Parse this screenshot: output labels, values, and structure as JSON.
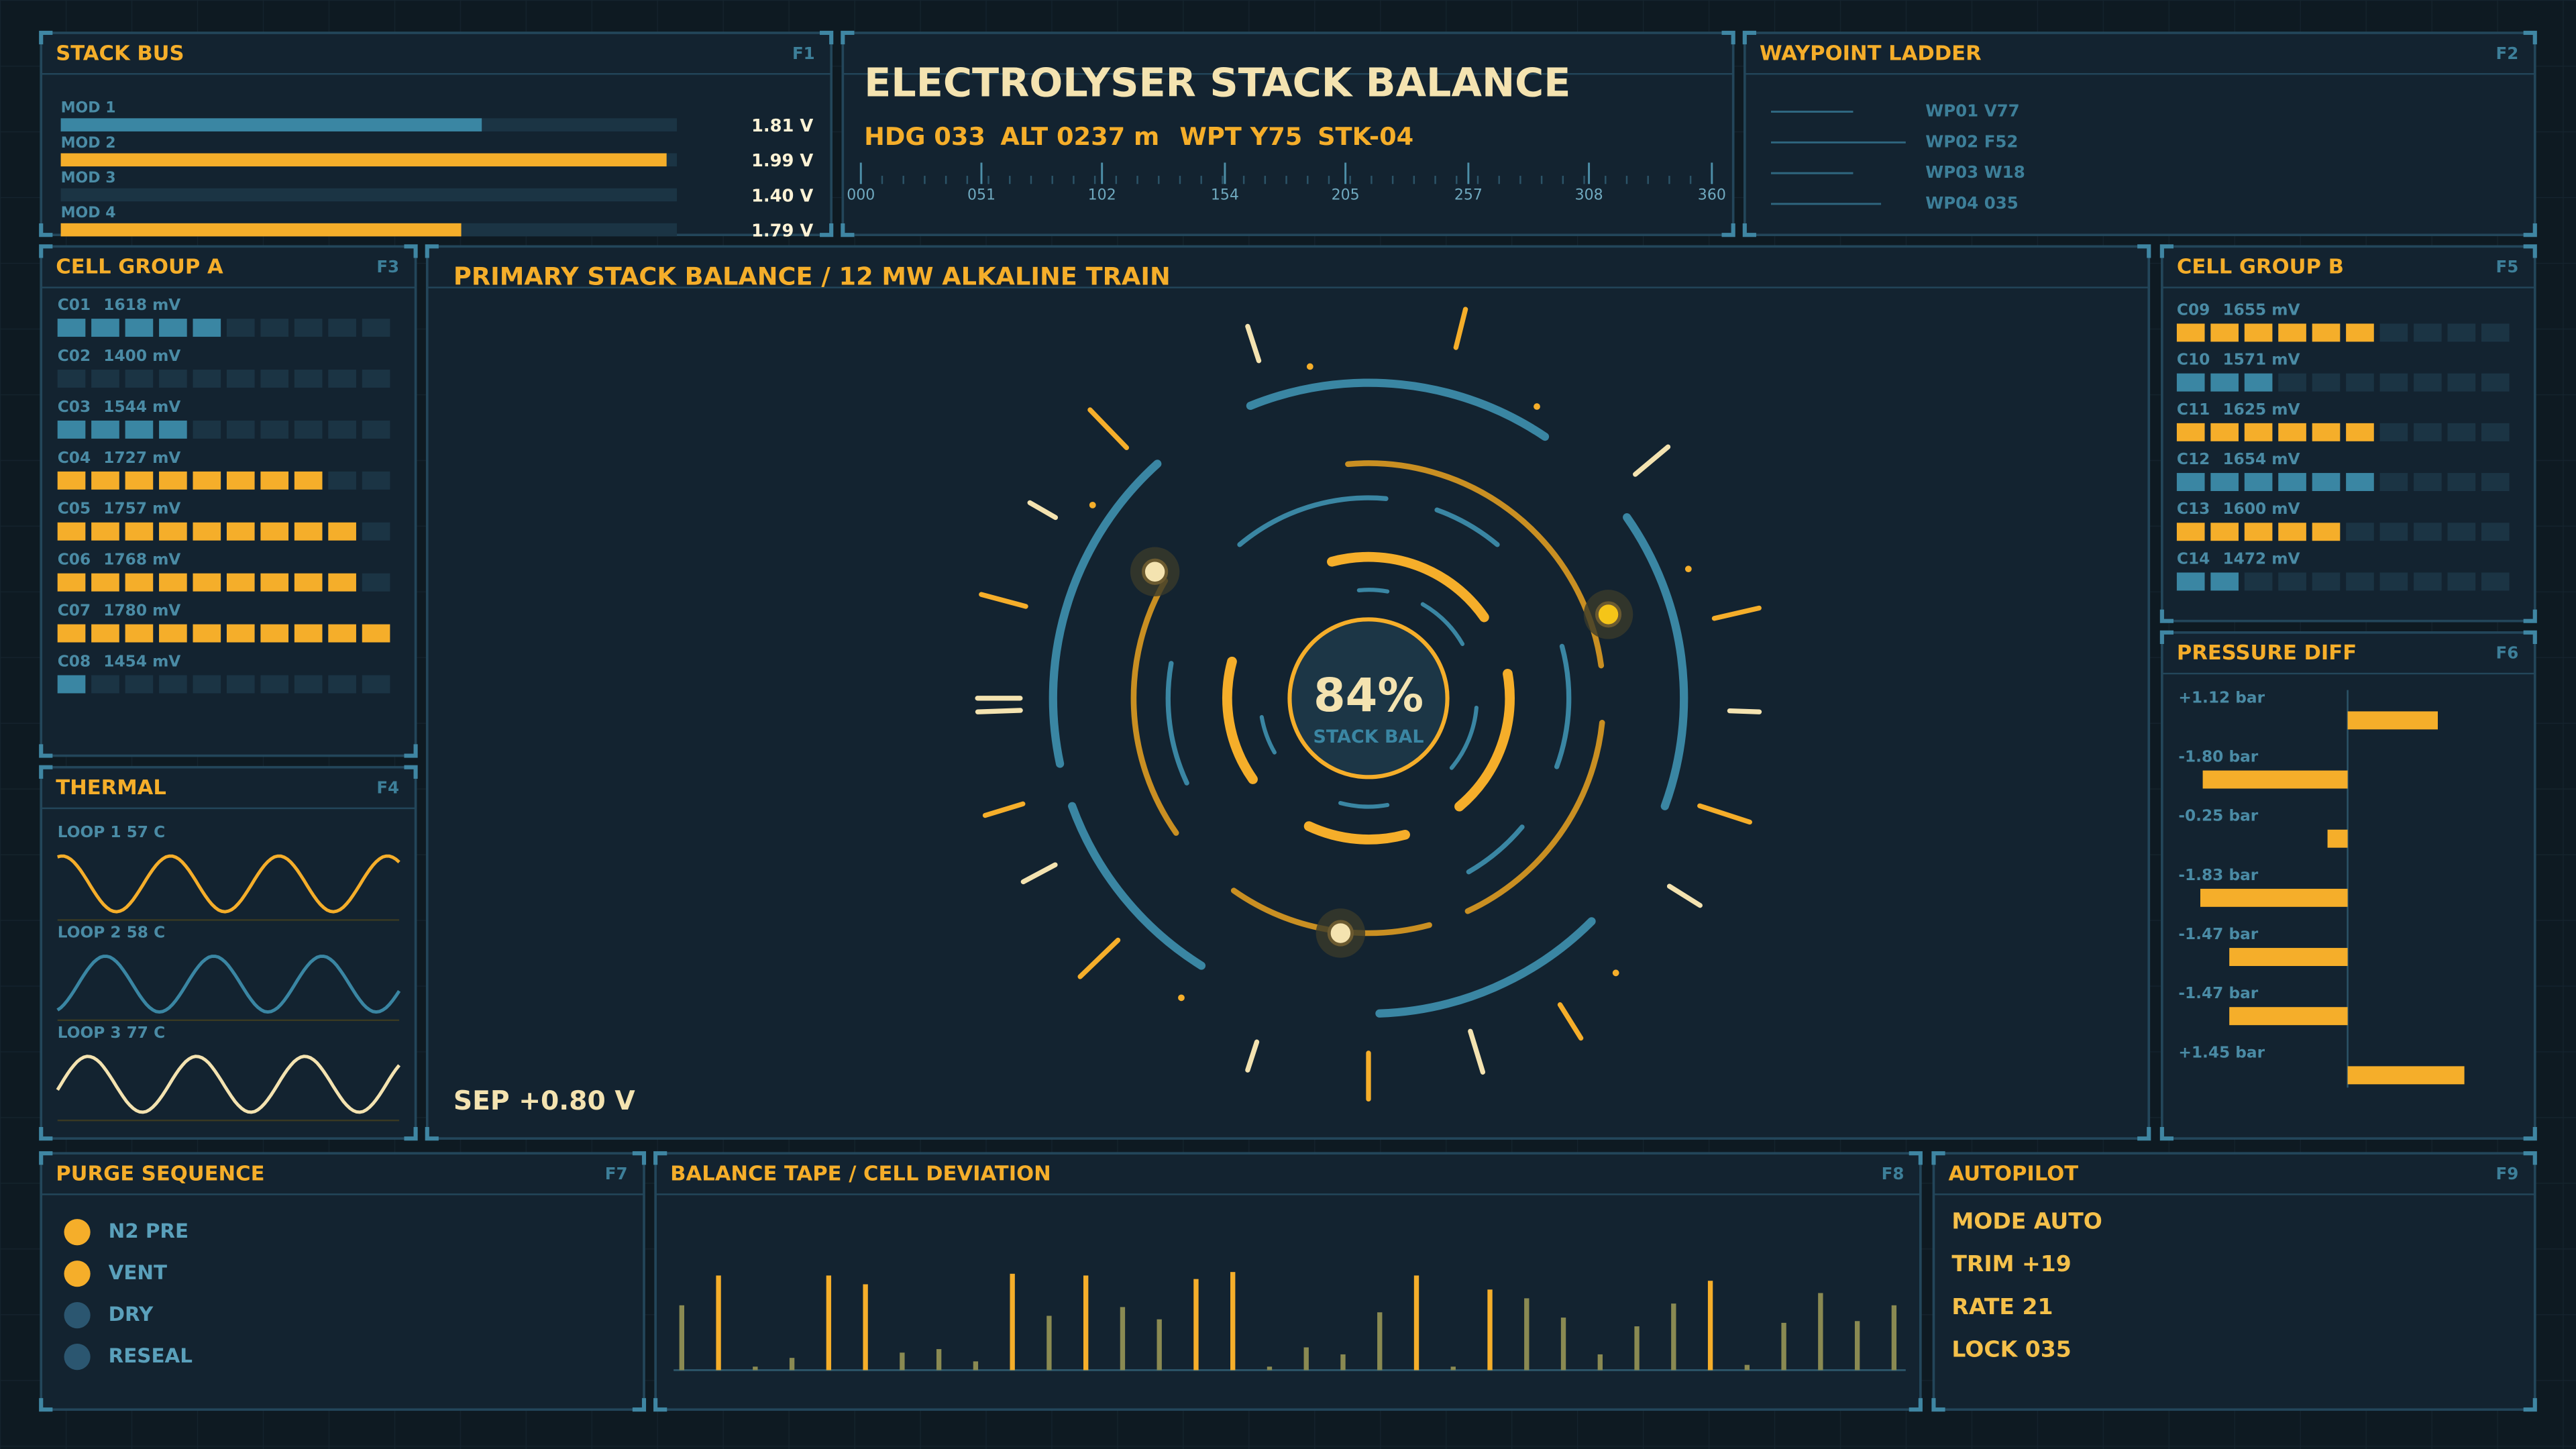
{
  "stack_bus": {
    "title": "STACK BUS",
    "key": "F1",
    "xlim": [
      1.4,
      2.0
    ],
    "modules": [
      {
        "name": "MOD 1",
        "value": 1.81,
        "value_label": "1.81 V",
        "color": "#3a86a3"
      },
      {
        "name": "MOD 2",
        "value": 1.99,
        "value_label": "1.99 V",
        "color": "#f5ae2a"
      },
      {
        "name": "MOD 3",
        "value": 1.4,
        "value_label": "1.40 V",
        "color": "#3a86a3"
      },
      {
        "name": "MOD 4",
        "value": 1.79,
        "value_label": "1.79 V",
        "color": "#f5ae2a"
      }
    ]
  },
  "header": {
    "title": "ELECTROLYSER STACK BALANCE",
    "readouts": [
      "HDG 033",
      "ALT 0237 m",
      "WPT Y75",
      "STK-04"
    ],
    "scale_lim": [
      0,
      360
    ],
    "scale_ticks": [
      {
        "value": 0,
        "label": "000"
      },
      {
        "value": 51,
        "label": "051"
      },
      102,
      154,
      205,
      257,
      308,
      360
    ]
  },
  "waypoint_ladder": {
    "title": "WAYPOINT LADDER",
    "key": "F2",
    "items": [
      "WP01 V77",
      "WP02 F52",
      "WP03 W18",
      "WP04 035"
    ]
  },
  "cell_group_a": {
    "title": "CELL GROUP A",
    "key": "F3",
    "segments": 10,
    "cells": [
      {
        "name": "C01",
        "value": 1618,
        "value_label": "1618 mV",
        "lit": 5,
        "color": "#3a86a3"
      },
      {
        "name": "C02",
        "value": 1400,
        "value_label": "1400 mV",
        "lit": 0,
        "color": "#3a86a3"
      },
      {
        "name": "C03",
        "value": 1544,
        "value_label": "1544 mV",
        "lit": 4,
        "color": "#3a86a3"
      },
      {
        "name": "C04",
        "value": 1727,
        "value_label": "1727 mV",
        "lit": 8,
        "color": "#f5ae2a"
      },
      {
        "name": "C05",
        "value": 1757,
        "value_label": "1757 mV",
        "lit": 9,
        "color": "#f5ae2a"
      },
      {
        "name": "C06",
        "value": 1768,
        "value_label": "1768 mV",
        "lit": 9,
        "color": "#f5ae2a"
      },
      {
        "name": "C07",
        "value": 1780,
        "value_label": "1780 mV",
        "lit": 10,
        "color": "#f5ae2a"
      },
      {
        "name": "C08",
        "value": 1454,
        "value_label": "1454 mV",
        "lit": 1,
        "color": "#3a86a3"
      }
    ]
  },
  "thermal": {
    "title": "THERMAL",
    "key": "F4",
    "loops": [
      {
        "label": "LOOP 1  57 C",
        "color": "#f5ae2a"
      },
      {
        "label": "LOOP 2  58 C",
        "color": "#3a86a3"
      },
      {
        "label": "LOOP 3  77 C",
        "color": "#f4e3b0"
      }
    ]
  },
  "main": {
    "title": "PRIMARY STACK BALANCE / 12 MW ALKALINE TRAIN",
    "balance_label": "84%",
    "balance_caption": "STACK BAL",
    "separation": "SEP +0.80 V"
  },
  "cell_group_b": {
    "title": "CELL GROUP B",
    "key": "F5",
    "segments": 10,
    "cells": [
      {
        "name": "C09",
        "value": 1655,
        "value_label": "1655 mV",
        "lit": 6,
        "color": "#f5ae2a"
      },
      {
        "name": "C10",
        "value": 1571,
        "value_label": "1571 mV",
        "lit": 3,
        "color": "#3a86a3"
      },
      {
        "name": "C11",
        "value": 1625,
        "value_label": "1625 mV",
        "lit": 6,
        "color": "#f5ae2a"
      },
      {
        "name": "C12",
        "value": 1654,
        "value_label": "1654 mV",
        "lit": 6,
        "color": "#3a86a3"
      },
      {
        "name": "C13",
        "value": 1600,
        "value_label": "1600 mV",
        "lit": 5,
        "color": "#f5ae2a"
      },
      {
        "name": "C14",
        "value": 1472,
        "value_label": "1472 mV",
        "lit": 2,
        "color": "#3a86a3"
      }
    ]
  },
  "pressure_diff": {
    "title": "PRESSURE DIFF",
    "key": "F6",
    "xlim": [
      -2,
      2
    ],
    "color": "#f5ae2a",
    "values": [
      1.12,
      -1.8,
      -0.25,
      -1.83,
      -1.47,
      -1.47,
      1.45
    ],
    "value_labels": [
      "+1.12 bar",
      "-1.80 bar",
      "-0.25 bar",
      "-1.83 bar",
      "-1.47 bar",
      "-1.47 bar",
      "+1.45 bar"
    ]
  },
  "purge_sequence": {
    "title": "PURGE SEQUENCE",
    "key": "F7",
    "steps": [
      {
        "name": "N2 PRE",
        "color": "#f5ae2a"
      },
      {
        "name": "VENT",
        "color": "#f5ae2a"
      },
      {
        "name": "DRY",
        "color": "#2b5670"
      },
      {
        "name": "RESEAL",
        "color": "#2b5670"
      }
    ]
  },
  "balance_tape": {
    "title": "BALANCE TAPE / CELL DEVIATION",
    "key": "F8",
    "ylim": [
      0,
      60
    ],
    "highlight_above": 45,
    "values": [
      37,
      54,
      2,
      7,
      54,
      49,
      10,
      12,
      5,
      55,
      31,
      54,
      36,
      29,
      52,
      56,
      2,
      13,
      9,
      33,
      54,
      2,
      46,
      41,
      30,
      9,
      25,
      38,
      51,
      3,
      27,
      44,
      28,
      37
    ]
  },
  "autopilot": {
    "title": "AUTOPILOT",
    "key": "F9",
    "items": [
      "MODE  AUTO",
      "TRIM  +19",
      "RATE  21",
      "LOCK  035"
    ]
  }
}
